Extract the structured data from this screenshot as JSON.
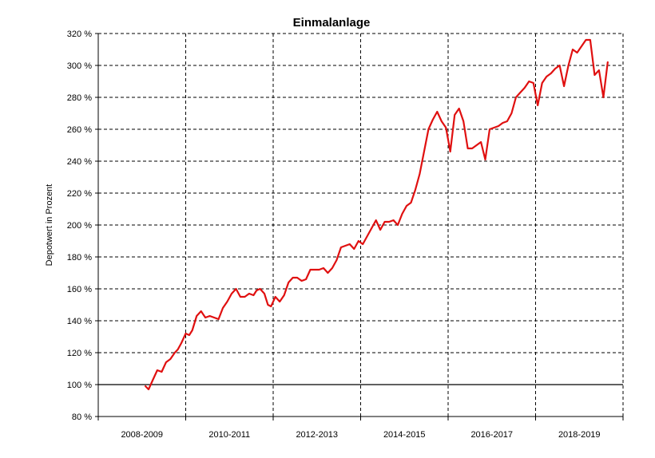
{
  "chart_data": {
    "type": "line",
    "title": "Einmalanlage",
    "xlabel": "",
    "ylabel": "Depotwert in Prozent",
    "ylim": [
      80,
      320
    ],
    "y_ticks": [
      "80 %",
      "100 %",
      "120 %",
      "140 %",
      "160 %",
      "180 %",
      "200 %",
      "220 %",
      "240 %",
      "260 %",
      "280 %",
      "300 %",
      "320 %"
    ],
    "categories": [
      "2008-2009",
      "2010-2011",
      "2012-2013",
      "2014-2015",
      "2016-2017",
      "2018-2019"
    ],
    "xlim_years": [
      2008,
      2020
    ],
    "grid": true,
    "reference_line": 100,
    "colors": {
      "series": "#e01010",
      "grid": "#000000",
      "axis": "#000000",
      "background": "#ffffff"
    },
    "series": [
      {
        "x": [
          2009.08,
          2009.15,
          2009.25,
          2009.35,
          2009.45,
          2009.55,
          2009.65,
          2009.75,
          2009.82,
          2009.9,
          2010.0,
          2010.08,
          2010.15,
          2010.25,
          2010.35,
          2010.45,
          2010.55,
          2010.65,
          2010.75,
          2010.85,
          2010.95,
          2011.05,
          2011.15,
          2011.25,
          2011.35,
          2011.45,
          2011.55,
          2011.62,
          2011.7,
          2011.8,
          2011.88,
          2011.95,
          2012.05,
          2012.15,
          2012.25,
          2012.35,
          2012.45,
          2012.55,
          2012.65,
          2012.75,
          2012.85,
          2012.95,
          2013.05,
          2013.15,
          2013.25,
          2013.35,
          2013.45,
          2013.55,
          2013.65,
          2013.75,
          2013.85,
          2013.95,
          2014.05,
          2014.15,
          2014.25,
          2014.35,
          2014.45,
          2014.55,
          2014.65,
          2014.75,
          2014.85,
          2014.95,
          2015.05,
          2015.15,
          2015.25,
          2015.35,
          2015.45,
          2015.55,
          2015.65,
          2015.75,
          2015.85,
          2015.95,
          2016.05,
          2016.15,
          2016.25,
          2016.35,
          2016.45,
          2016.55,
          2016.65,
          2016.75,
          2016.85,
          2016.95,
          2017.05,
          2017.15,
          2017.25,
          2017.35,
          2017.45,
          2017.55,
          2017.65,
          2017.75,
          2017.85,
          2017.95,
          2018.05,
          2018.15,
          2018.25,
          2018.35,
          2018.45,
          2018.55,
          2018.65,
          2018.75,
          2018.85,
          2018.95,
          2019.05,
          2019.15,
          2019.25,
          2019.35,
          2019.45,
          2019.55,
          2019.65
        ],
        "y": [
          99,
          97,
          103,
          109,
          108,
          114,
          116,
          120,
          122,
          126,
          132,
          131,
          134,
          143,
          146,
          142,
          143,
          142,
          141,
          148,
          152,
          157,
          160,
          155,
          155,
          157,
          156,
          159,
          160,
          157,
          150,
          149,
          155,
          152,
          156,
          164,
          167,
          167,
          165,
          166,
          172,
          172,
          172,
          173,
          170,
          173,
          178,
          186,
          187,
          188,
          185,
          190,
          188,
          193,
          198,
          203,
          197,
          202,
          202,
          203,
          200,
          207,
          212,
          214,
          222,
          232,
          246,
          260,
          266,
          271,
          265,
          261,
          246,
          269,
          273,
          265,
          248,
          248,
          250,
          252,
          241,
          260,
          261,
          262,
          264,
          265,
          270,
          280,
          283,
          286,
          290,
          289,
          275,
          289,
          293,
          295,
          298,
          300,
          287,
          300,
          310,
          308,
          312,
          316,
          316,
          294,
          297,
          280,
          302
        ]
      }
    ]
  }
}
